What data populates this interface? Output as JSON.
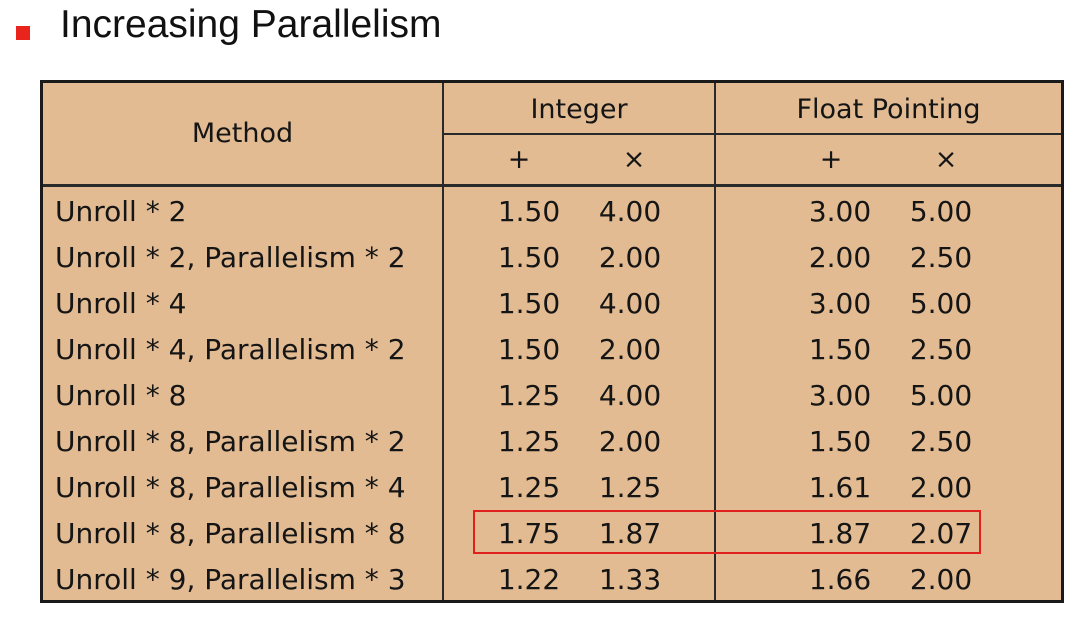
{
  "heading": "Increasing Parallelism",
  "table": {
    "columns": {
      "method": "Method",
      "integer": "Integer",
      "float": "Float Pointing",
      "int_add": "+",
      "int_mul": "×",
      "fp_add": "+",
      "fp_mul": "×"
    },
    "rows": [
      {
        "method": "Unroll * 2",
        "int_add": "1.50",
        "int_mul": "4.00",
        "fp_add": "3.00",
        "fp_mul": "5.00"
      },
      {
        "method": "Unroll * 2, Parallelism * 2",
        "int_add": "1.50",
        "int_mul": "2.00",
        "fp_add": "2.00",
        "fp_mul": "2.50"
      },
      {
        "method": "Unroll * 4",
        "int_add": "1.50",
        "int_mul": "4.00",
        "fp_add": "3.00",
        "fp_mul": "5.00"
      },
      {
        "method": "Unroll * 4, Parallelism * 2",
        "int_add": "1.50",
        "int_mul": "2.00",
        "fp_add": "1.50",
        "fp_mul": "2.50"
      },
      {
        "method": "Unroll * 8",
        "int_add": "1.25",
        "int_mul": "4.00",
        "fp_add": "3.00",
        "fp_mul": "5.00"
      },
      {
        "method": "Unroll * 8, Parallelism * 2",
        "int_add": "1.25",
        "int_mul": "2.00",
        "fp_add": "1.50",
        "fp_mul": "2.50"
      },
      {
        "method": "Unroll * 8, Parallelism * 4",
        "int_add": "1.25",
        "int_mul": "1.25",
        "fp_add": "1.61",
        "fp_mul": "2.00"
      },
      {
        "method": "Unroll * 8, Parallelism * 8",
        "int_add": "1.75",
        "int_mul": "1.87",
        "fp_add": "1.87",
        "fp_mul": "2.07"
      },
      {
        "method": "Unroll * 9, Parallelism * 3",
        "int_add": "1.22",
        "int_mul": "1.33",
        "fp_add": "1.66",
        "fp_mul": "2.00"
      }
    ]
  },
  "colors": {
    "table_bg": "#e2bb93",
    "bullet": "#e8241c",
    "highlight_border": "#e0201c"
  }
}
